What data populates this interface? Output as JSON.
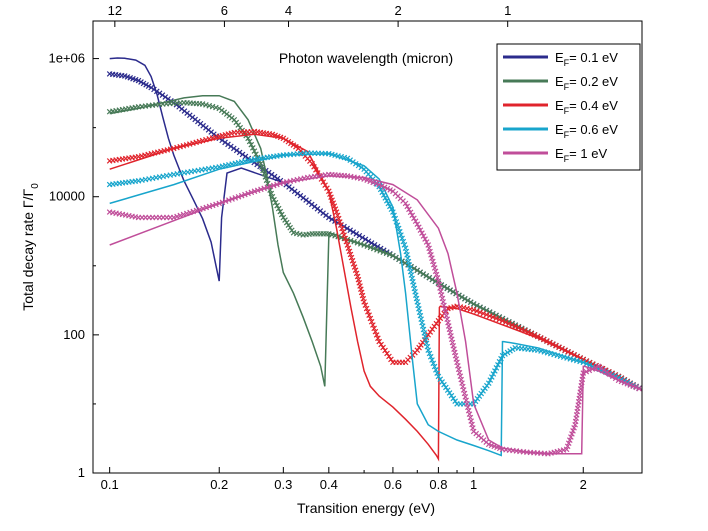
{
  "chart_data": {
    "type": "line",
    "title": "",
    "xlabel": "Transition energy (eV)",
    "ylabel_main": "Total decay rate  Γ/Γ",
    "ylabel_sub": "0",
    "top_axis_label": "Photon wavelength (micron)",
    "xscale": "log",
    "yscale": "log",
    "xlim": [
      0.09,
      2.9
    ],
    "ylim": [
      1,
      3500000
    ],
    "x_ticks": [
      0.1,
      0.2,
      0.3,
      0.4,
      0.6,
      0.8,
      1,
      2
    ],
    "x_tick_labels": [
      "0.1",
      "0.2",
      "0.3",
      "0.4",
      "0.6",
      "0.8",
      "1",
      "2"
    ],
    "y_ticks": [
      1,
      100,
      10000,
      1000000
    ],
    "y_tick_labels": [
      "1",
      "100",
      "10000",
      "1e+06"
    ],
    "top_ticks_micron": [
      12,
      6,
      4,
      2,
      1
    ],
    "top_tick_labels": [
      "12",
      "6",
      "4",
      "2",
      "1"
    ],
    "legend_location": "top-right",
    "series": [
      {
        "name": "E_F = 0.1 eV",
        "legend_sub": "F",
        "legend_rest": "= 0.1 eV",
        "color": "#2b2b8c",
        "line": {
          "x": [
            0.1,
            0.105,
            0.11,
            0.118,
            0.125,
            0.13,
            0.135,
            0.14,
            0.145,
            0.15,
            0.155,
            0.16,
            0.17,
            0.18,
            0.19,
            0.196,
            0.2,
            0.203,
            0.21,
            0.23,
            0.3,
            0.4,
            0.6,
            0.8,
            1,
            1.5,
            2,
            2.5,
            2.9
          ],
          "y": [
            1000000,
            1020000,
            1010000,
            950000,
            800000,
            550000,
            300000,
            140000,
            70000,
            40000,
            26000,
            17000,
            9000,
            4800,
            2200,
            1000,
            600,
            5000,
            22000,
            26000,
            16000,
            5000,
            1400,
            560,
            280,
            95,
            44,
            25,
            16
          ]
        },
        "markers": {
          "x": [
            0.1,
            0.11,
            0.12,
            0.13,
            0.15,
            0.2,
            0.3,
            0.4,
            0.6,
            0.8,
            1,
            1.5,
            2,
            2.5,
            2.9
          ],
          "y": [
            600000,
            560000,
            480000,
            380000,
            230000,
            70000,
            16000,
            5000,
            1400,
            560,
            280,
            95,
            44,
            25,
            16
          ]
        }
      },
      {
        "name": "E_F = 0.2 eV",
        "legend_sub": "F",
        "legend_rest": "= 0.2 eV",
        "color": "#477a57",
        "line": {
          "x": [
            0.1,
            0.12,
            0.14,
            0.16,
            0.18,
            0.2,
            0.22,
            0.24,
            0.26,
            0.27,
            0.28,
            0.29,
            0.3,
            0.32,
            0.34,
            0.36,
            0.38,
            0.39,
            0.4,
            0.402,
            0.41,
            0.42,
            0.45,
            0.5,
            0.6,
            0.8,
            1,
            1.5,
            2,
            2.5,
            2.9
          ],
          "y": [
            160000,
            190000,
            230000,
            270000,
            290000,
            290000,
            240000,
            130000,
            50000,
            20000,
            7000,
            2000,
            800,
            400,
            180,
            80,
            35,
            18,
            2600,
            3000,
            2900,
            2800,
            2400,
            2000,
            1400,
            560,
            280,
            95,
            44,
            25,
            16
          ]
        },
        "markers": {
          "x": [
            0.1,
            0.12,
            0.14,
            0.16,
            0.18,
            0.2,
            0.22,
            0.24,
            0.26,
            0.28,
            0.3,
            0.32,
            0.34,
            0.36,
            0.38,
            0.4,
            0.45,
            0.5,
            0.6,
            0.8,
            1,
            1.5,
            2,
            2.5,
            2.9
          ],
          "y": [
            170000,
            200000,
            220000,
            230000,
            220000,
            190000,
            130000,
            70000,
            30000,
            10000,
            5000,
            3000,
            2800,
            2900,
            2900,
            2900,
            2400,
            2000,
            1400,
            560,
            280,
            95,
            44,
            25,
            16
          ]
        }
      },
      {
        "name": "E_F = 0.4 eV",
        "legend_sub": "F",
        "legend_rest": "= 0.4 eV",
        "color": "#e0242c",
        "line": {
          "x": [
            0.1,
            0.15,
            0.2,
            0.25,
            0.3,
            0.35,
            0.4,
            0.42,
            0.44,
            0.46,
            0.48,
            0.5,
            0.52,
            0.55,
            0.6,
            0.65,
            0.7,
            0.75,
            0.79,
            0.8,
            0.805,
            0.81,
            0.83,
            0.9,
            1,
            1.2,
            1.5,
            2,
            2.5,
            2.9
          ],
          "y": [
            25000,
            50000,
            70000,
            80000,
            70000,
            45000,
            12000,
            3500,
            900,
            250,
            80,
            30,
            18,
            13,
            9,
            6,
            4,
            2.6,
            1.8,
            1.6,
            250,
            260,
            255,
            240,
            200,
            140,
            90,
            44,
            25,
            16
          ]
        },
        "markers": {
          "x": [
            0.1,
            0.12,
            0.15,
            0.18,
            0.2,
            0.22,
            0.25,
            0.28,
            0.3,
            0.33,
            0.36,
            0.4,
            0.42,
            0.45,
            0.48,
            0.5,
            0.55,
            0.6,
            0.65,
            0.7,
            0.75,
            0.8,
            0.85,
            0.9,
            1,
            1.2,
            1.5,
            2,
            2.5,
            2.9
          ],
          "y": [
            33000,
            38000,
            50000,
            65000,
            75000,
            85000,
            88000,
            80000,
            70000,
            50000,
            30000,
            12000,
            6000,
            2000,
            700,
            300,
            80,
            40,
            40,
            60,
            100,
            160,
            240,
            260,
            230,
            160,
            95,
            44,
            25,
            16
          ]
        }
      },
      {
        "name": "E_F = 0.6 eV",
        "legend_sub": "F",
        "legend_rest": "= 0.6 eV",
        "color": "#18a5cc",
        "line": {
          "x": [
            0.1,
            0.15,
            0.2,
            0.3,
            0.4,
            0.5,
            0.55,
            0.6,
            0.63,
            0.65,
            0.68,
            0.7,
            0.75,
            0.8,
            0.9,
            1,
            1.1,
            1.19,
            1.2,
            1.21,
            1.3,
            1.5,
            2,
            2.5,
            2.9
          ],
          "y": [
            8000,
            15000,
            25000,
            40000,
            42000,
            28000,
            18000,
            7000,
            1500,
            400,
            40,
            10,
            5,
            4,
            3,
            2.5,
            2.1,
            1.8,
            80,
            80,
            75,
            65,
            40,
            24,
            16
          ]
        },
        "markers": {
          "x": [
            0.1,
            0.12,
            0.15,
            0.2,
            0.25,
            0.3,
            0.35,
            0.4,
            0.45,
            0.5,
            0.55,
            0.6,
            0.65,
            0.7,
            0.75,
            0.8,
            0.9,
            1,
            1.1,
            1.2,
            1.3,
            1.5,
            2,
            2.5,
            2.9
          ],
          "y": [
            15000,
            17000,
            21000,
            27000,
            35000,
            40000,
            43000,
            42000,
            36000,
            25000,
            14000,
            6000,
            1800,
            300,
            60,
            25,
            10,
            10,
            20,
            50,
            65,
            60,
            40,
            24,
            16
          ]
        }
      },
      {
        "name": "E_F = 1 eV",
        "legend_sub": "F",
        "legend_rest": "= 1 eV",
        "color": "#c04e9a",
        "line": {
          "x": [
            0.1,
            0.15,
            0.2,
            0.3,
            0.4,
            0.5,
            0.6,
            0.7,
            0.8,
            0.85,
            0.9,
            0.95,
            1,
            1.1,
            1.2,
            1.4,
            1.6,
            1.8,
            1.98,
            2,
            2.02,
            2.2,
            2.5,
            2.9
          ],
          "y": [
            2000,
            4500,
            8000,
            16000,
            20000,
            19000,
            15000,
            9000,
            3500,
            1500,
            400,
            80,
            10,
            3,
            2.3,
            2,
            1.9,
            1.9,
            1.9,
            35,
            35,
            30,
            22,
            16
          ]
        },
        "markers": {
          "x": [
            0.1,
            0.12,
            0.15,
            0.2,
            0.25,
            0.3,
            0.35,
            0.4,
            0.45,
            0.5,
            0.55,
            0.6,
            0.65,
            0.7,
            0.75,
            0.8,
            0.85,
            0.9,
            1,
            1.1,
            1.2,
            1.4,
            1.6,
            1.8,
            1.9,
            1.95,
            2,
            2.2,
            2.5,
            2.9
          ],
          "y": [
            6000,
            5000,
            5000,
            8000,
            12000,
            16000,
            19000,
            21000,
            20000,
            18000,
            15000,
            12000,
            8000,
            4000,
            2000,
            600,
            150,
            40,
            4,
            2.6,
            2.2,
            2,
            1.9,
            2.2,
            5,
            12,
            28,
            35,
            22,
            16
          ]
        }
      }
    ]
  }
}
